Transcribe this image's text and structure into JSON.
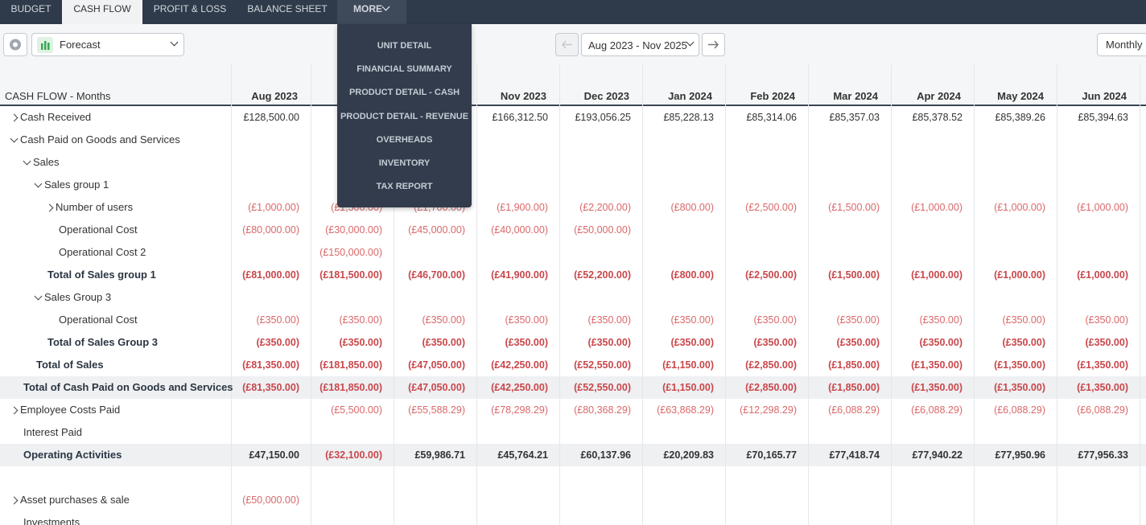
{
  "nav": {
    "tabs": [
      "BUDGET",
      "CASH FLOW",
      "PROFIT & LOSS",
      "BALANCE SHEET",
      "MORE"
    ]
  },
  "toolbar": {
    "scenario": "Forecast",
    "date_range": "Aug 2023 - Nov 2025",
    "period": "Monthly"
  },
  "menu": {
    "items": [
      "UNIT DETAIL",
      "FINANCIAL SUMMARY",
      "PRODUCT DETAIL - CASH",
      "PRODUCT DETAIL - REVENUE",
      "OVERHEADS",
      "INVENTORY",
      "TAX REPORT"
    ]
  },
  "table": {
    "title": "CASH FLOW - Months",
    "columns": [
      "Aug 2023",
      null,
      null,
      "Nov 2023",
      "Dec 2023",
      "Jan 2024",
      "Feb 2024",
      "Mar 2024",
      "Apr 2024",
      "May 2024",
      "Jun 2024"
    ],
    "rows": [
      {
        "label": "Cash Received",
        "values": [
          "£128,500.00",
          null,
          null,
          "£166,312.50",
          "£193,056.25",
          "£85,228.13",
          "£85,314.06",
          "£85,357.03",
          "£85,378.52",
          "£85,389.26",
          "£85,394.63"
        ]
      },
      {
        "label": "Cash Paid on Goods and Services"
      },
      {
        "label": "Sales"
      },
      {
        "label": "Sales group 1"
      },
      {
        "label": "Number of users",
        "values": [
          "(£1,000.00)",
          "(£1,500.00)",
          "(£1,700.00)",
          "(£1,900.00)",
          "(£2,200.00)",
          "(£800.00)",
          "(£2,500.00)",
          "(£1,500.00)",
          "(£1,000.00)",
          "(£1,000.00)",
          "(£1,000.00)"
        ]
      },
      {
        "label": "Operational Cost",
        "values": [
          "(£80,000.00)",
          "(£30,000.00)",
          "(£45,000.00)",
          "(£40,000.00)",
          "(£50,000.00)",
          null,
          null,
          null,
          null,
          null,
          null
        ]
      },
      {
        "label": "Operational Cost 2",
        "values": [
          null,
          "(£150,000.00)",
          null,
          null,
          null,
          null,
          null,
          null,
          null,
          null,
          null
        ]
      },
      {
        "label": "Total of Sales group 1",
        "values": [
          "(£81,000.00)",
          "(£181,500.00)",
          "(£46,700.00)",
          "(£41,900.00)",
          "(£52,200.00)",
          "(£800.00)",
          "(£2,500.00)",
          "(£1,500.00)",
          "(£1,000.00)",
          "(£1,000.00)",
          "(£1,000.00)"
        ]
      },
      {
        "label": "Sales Group 3"
      },
      {
        "label": "Operational Cost",
        "values": [
          "(£350.00)",
          "(£350.00)",
          "(£350.00)",
          "(£350.00)",
          "(£350.00)",
          "(£350.00)",
          "(£350.00)",
          "(£350.00)",
          "(£350.00)",
          "(£350.00)",
          "(£350.00)"
        ]
      },
      {
        "label": "Total of Sales Group 3",
        "values": [
          "(£350.00)",
          "(£350.00)",
          "(£350.00)",
          "(£350.00)",
          "(£350.00)",
          "(£350.00)",
          "(£350.00)",
          "(£350.00)",
          "(£350.00)",
          "(£350.00)",
          "(£350.00)"
        ]
      },
      {
        "label": "Total of Sales",
        "values": [
          "(£81,350.00)",
          "(£181,850.00)",
          "(£47,050.00)",
          "(£42,250.00)",
          "(£52,550.00)",
          "(£1,150.00)",
          "(£2,850.00)",
          "(£1,850.00)",
          "(£1,350.00)",
          "(£1,350.00)",
          "(£1,350.00)"
        ]
      },
      {
        "label": "Total of Cash Paid on Goods and Services",
        "values": [
          "(£81,350.00)",
          "(£181,850.00)",
          "(£47,050.00)",
          "(£42,250.00)",
          "(£52,550.00)",
          "(£1,150.00)",
          "(£2,850.00)",
          "(£1,850.00)",
          "(£1,350.00)",
          "(£1,350.00)",
          "(£1,350.00)"
        ]
      },
      {
        "label": "Employee Costs Paid",
        "values": [
          null,
          "(£5,500.00)",
          "(£55,588.29)",
          "(£78,298.29)",
          "(£80,368.29)",
          "(£63,868.29)",
          "(£12,298.29)",
          "(£6,088.29)",
          "(£6,088.29)",
          "(£6,088.29)",
          "(£6,088.29)"
        ]
      },
      {
        "label": "Interest Paid"
      },
      {
        "label": "Operating Activities",
        "values": [
          "£47,150.00",
          "(£32,100.00)",
          "£59,986.71",
          "£45,764.21",
          "£60,137.96",
          "£20,209.83",
          "£70,165.77",
          "£77,418.74",
          "£77,940.22",
          "£77,950.96",
          "£77,956.33"
        ]
      },
      {
        "label": "Asset purchases & sale",
        "values": [
          "(£50,000.00)",
          null,
          null,
          null,
          null,
          null,
          null,
          null,
          null,
          null,
          null
        ]
      },
      {
        "label": "Investments"
      }
    ]
  }
}
